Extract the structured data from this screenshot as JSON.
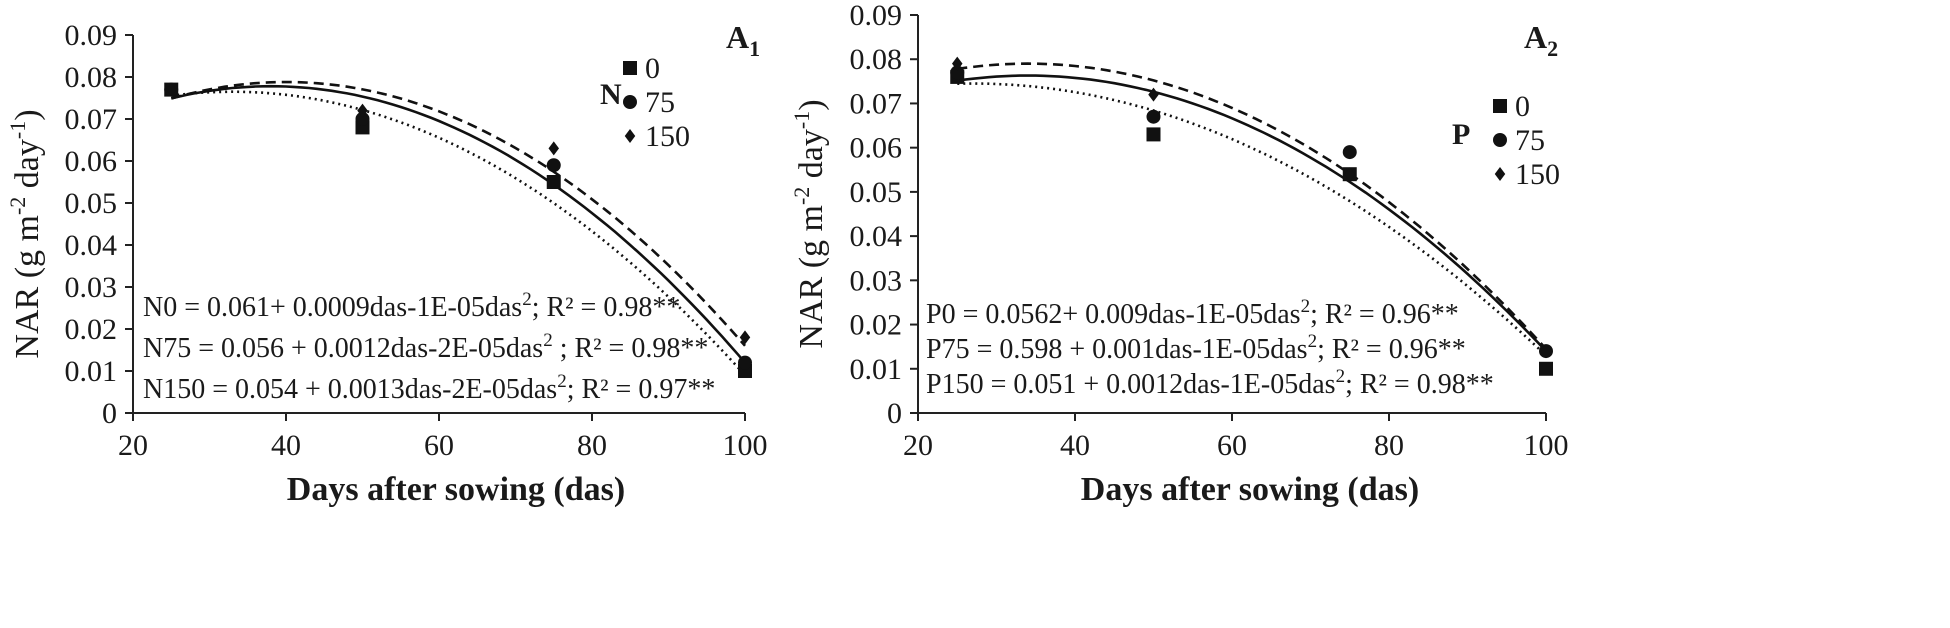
{
  "chart_data": [
    {
      "type": "scatter",
      "panel_label": "A",
      "panel_label_sub": "1",
      "xlabel": "Days after sowing (das)",
      "ylabel": "NAR (g m-2 day-1)",
      "ylabel_parts": {
        "base": "NAR (g m",
        "exp1": "-2",
        "mid": " day",
        "exp2": "-1",
        "end": ")"
      },
      "xlim": [
        20,
        100
      ],
      "ylim": [
        0,
        0.09
      ],
      "x_ticks": [
        "20",
        "40",
        "60",
        "80",
        "100"
      ],
      "y_ticks": [
        "0",
        "0.01",
        "0.02",
        "0.03",
        "0.04",
        "0.05",
        "0.06",
        "0.07",
        "0.08",
        "0.09"
      ],
      "legend_title": "N",
      "legend_position": "top-right",
      "series": [
        {
          "name": "0",
          "marker": "square",
          "line": "solid",
          "x": [
            25,
            50,
            75,
            100
          ],
          "y": [
            0.077,
            0.068,
            0.055,
            0.01
          ]
        },
        {
          "name": "75",
          "marker": "circle",
          "line": "dotted",
          "x": [
            25,
            50,
            75,
            100
          ],
          "y": [
            0.077,
            0.07,
            0.059,
            0.012
          ]
        },
        {
          "name": "150",
          "marker": "diamond",
          "line": "dashed",
          "x": [
            25,
            50,
            75,
            100
          ],
          "y": [
            0.077,
            0.072,
            0.063,
            0.018
          ]
        }
      ],
      "curves": [
        {
          "style": "solid",
          "vertex_x": 38,
          "vertex_y": 0.0778,
          "end_y": 0.012
        },
        {
          "style": "dashed",
          "vertex_x": 40,
          "vertex_y": 0.0788,
          "end_y": 0.016
        },
        {
          "style": "dotted",
          "vertex_x": 33,
          "vertex_y": 0.0765,
          "end_y": 0.009
        }
      ],
      "equations": [
        {
          "prefix": "N0 =  0.061+ 0.0009das-1E-05das",
          "sup": "2",
          "suffix": "; R² = 0.98**"
        },
        {
          "prefix": "N75 = 0.056 + 0.0012das-2E-05das",
          "sup": "2",
          "suffix": " ; R² = 0.98**"
        },
        {
          "prefix": "N150 = 0.054 + 0.0013das-2E-05das",
          "sup": "2",
          "suffix": "; R² = 0.97**"
        }
      ]
    },
    {
      "type": "scatter",
      "panel_label": "A",
      "panel_label_sub": "2",
      "xlabel": "Days after sowing (das)",
      "ylabel": "NAR (g m-2 day-1)",
      "ylabel_parts": {
        "base": "NAR (g m",
        "exp1": "-2",
        "mid": " day",
        "exp2": "-1",
        "end": ")"
      },
      "xlim": [
        20,
        100
      ],
      "ylim": [
        0,
        0.09
      ],
      "x_ticks": [
        "20",
        "40",
        "60",
        "80",
        "100"
      ],
      "y_ticks": [
        "0",
        "0.01",
        "0.02",
        "0.03",
        "0.04",
        "0.05",
        "0.06",
        "0.07",
        "0.08",
        "0.09"
      ],
      "legend_title": "P",
      "legend_position": "top-right",
      "series": [
        {
          "name": "0",
          "marker": "square",
          "line": "solid",
          "x": [
            25,
            50,
            75,
            100
          ],
          "y": [
            0.076,
            0.063,
            0.054,
            0.01
          ]
        },
        {
          "name": "75",
          "marker": "circle",
          "line": "dotted",
          "x": [
            25,
            50,
            75,
            100
          ],
          "y": [
            0.077,
            0.067,
            0.059,
            0.014
          ]
        },
        {
          "name": "150",
          "marker": "diamond",
          "line": "dashed",
          "x": [
            25,
            50,
            75,
            100
          ],
          "y": [
            0.079,
            0.072,
            0.054,
            0.014
          ]
        }
      ],
      "curves": [
        {
          "style": "solid",
          "vertex_x": 34,
          "vertex_y": 0.0763,
          "end_y": 0.014
        },
        {
          "style": "dashed",
          "vertex_x": 34,
          "vertex_y": 0.079,
          "end_y": 0.0145
        },
        {
          "style": "dotted",
          "vertex_x": 27,
          "vertex_y": 0.0745,
          "end_y": 0.013
        }
      ],
      "equations": [
        {
          "prefix": "P0 =  0.0562+ 0.009das-1E-05das",
          "sup": "2",
          "suffix": "; R² = 0.96**"
        },
        {
          "prefix": " P75 = 0.598 + 0.001das-1E-05das",
          "sup": "2",
          "suffix": "; R² = 0.96**"
        },
        {
          "prefix": "P150 = 0.051 + 0.0012das-1E-05das",
          "sup": "2",
          "suffix": "; R² = 0.98**"
        }
      ]
    }
  ]
}
